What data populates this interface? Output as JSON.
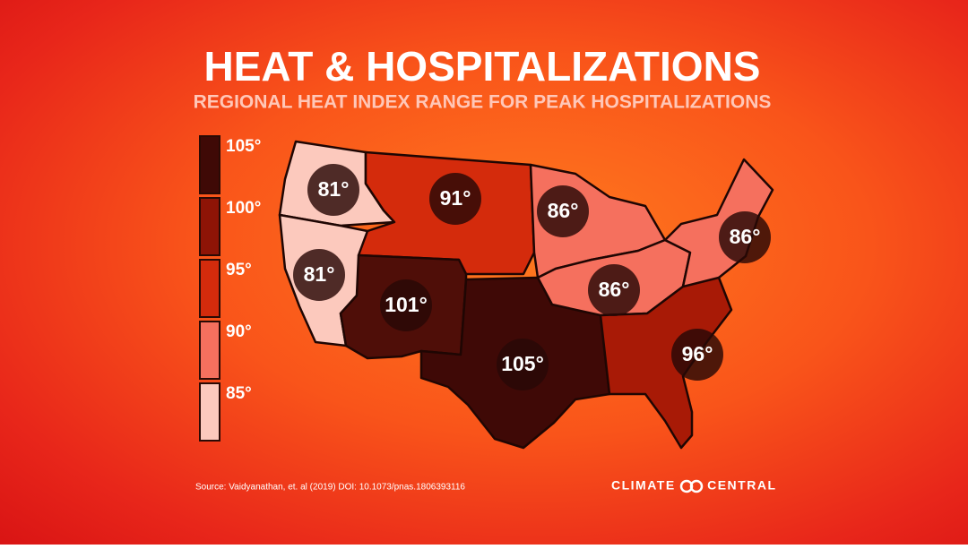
{
  "header": {
    "title": "HEAT & HOSPITALIZATIONS",
    "subtitle": "REGIONAL HEAT INDEX RANGE FOR PEAK HOSPITALIZATIONS"
  },
  "legend": {
    "items": [
      {
        "label": "105°",
        "color": "#3f0906"
      },
      {
        "label": "100°",
        "color": "#8e1406"
      },
      {
        "label": "95°",
        "color": "#d42b0c"
      },
      {
        "label": "90°",
        "color": "#f5705e"
      },
      {
        "label": "85°",
        "color": "#fcc9bd"
      }
    ]
  },
  "regions": [
    {
      "label": "81°",
      "color": "#fcc9bd"
    },
    {
      "label": "81°",
      "color": "#fcc9bd"
    },
    {
      "label": "91°",
      "color": "#d42b0c"
    },
    {
      "label": "101°",
      "color": "#4f0e08"
    },
    {
      "label": "105°",
      "color": "#3f0906"
    },
    {
      "label": "86°",
      "color": "#f5705e"
    },
    {
      "label": "86°",
      "color": "#f5705e"
    },
    {
      "label": "86°",
      "color": "#f5705e"
    },
    {
      "label": "96°",
      "color": "#a81a06"
    }
  ],
  "footer": {
    "source": "Source:  Vaidyanathan, et. al (2019) DOI: 10.1073/pnas.1806393116",
    "brand": "CLIMATE CENTRAL"
  }
}
